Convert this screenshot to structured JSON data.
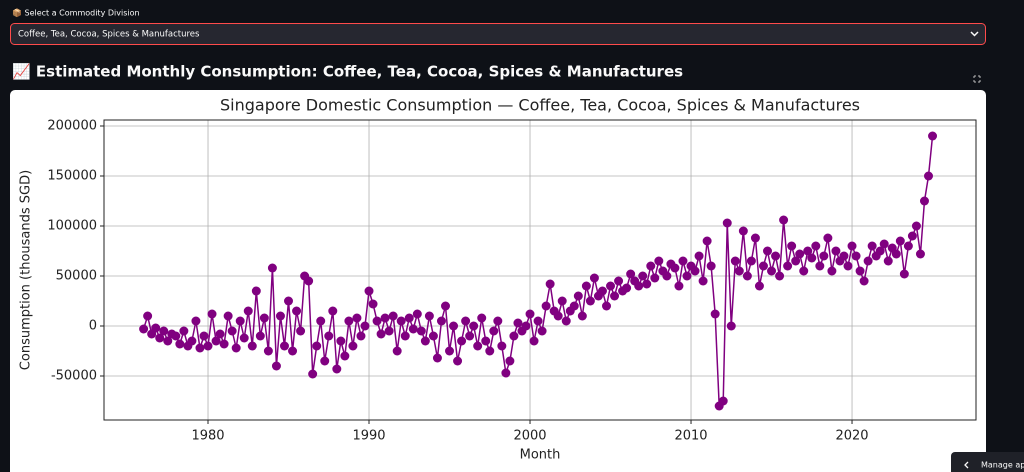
{
  "select": {
    "label": "📦 Select a Commodity Division",
    "value": "Coffee, Tea, Cocoa, Spices & Manufactures"
  },
  "header": "📈 Estimated Monthly Consumption: Coffee, Tea, Cocoa, Spices & Manufactures",
  "manage_app": "Manage app",
  "chart_data": {
    "type": "line",
    "title": "Singapore Domestic Consumption — Coffee, Tea, Cocoa, Spices & Manufactures",
    "x_label": "Month",
    "y_label": "Consumption (thousands SGD)",
    "color": "#800080",
    "grid": true,
    "xlim": [
      1973.54,
      2027.7
    ],
    "ylim": [
      -94000,
      206000
    ],
    "xticks": [
      1980,
      1990,
      2000,
      2010,
      2020
    ],
    "yticks": [
      -50000,
      0,
      50000,
      100000,
      150000,
      200000
    ],
    "x": [
      1976,
      1976.25,
      1976.5,
      1976.75,
      1977,
      1977.25,
      1977.5,
      1977.75,
      1978,
      1978.25,
      1978.5,
      1978.75,
      1979,
      1979.25,
      1979.5,
      1979.75,
      1980,
      1980.25,
      1980.5,
      1980.75,
      1981,
      1981.25,
      1981.5,
      1981.75,
      1982,
      1982.25,
      1982.5,
      1982.75,
      1983,
      1983.25,
      1983.5,
      1983.75,
      1984,
      1984.25,
      1984.5,
      1984.75,
      1985,
      1985.25,
      1985.5,
      1985.75,
      1986,
      1986.25,
      1986.5,
      1986.75,
      1987,
      1987.25,
      1987.5,
      1987.75,
      1988,
      1988.25,
      1988.5,
      1988.75,
      1989,
      1989.25,
      1989.5,
      1989.75,
      1990,
      1990.25,
      1990.5,
      1990.75,
      1991,
      1991.25,
      1991.5,
      1991.75,
      1992,
      1992.25,
      1992.5,
      1992.75,
      1993,
      1993.25,
      1993.5,
      1993.75,
      1994,
      1994.25,
      1994.5,
      1994.75,
      1995,
      1995.25,
      1995.5,
      1995.75,
      1996,
      1996.25,
      1996.5,
      1996.75,
      1997,
      1997.25,
      1997.5,
      1997.75,
      1998,
      1998.25,
      1998.5,
      1998.75,
      1999,
      1999.25,
      1999.5,
      1999.75,
      2000,
      2000.25,
      2000.5,
      2000.75,
      2001,
      2001.25,
      2001.5,
      2001.75,
      2002,
      2002.25,
      2002.5,
      2002.75,
      2003,
      2003.25,
      2003.5,
      2003.75,
      2004,
      2004.25,
      2004.5,
      2004.75,
      2005,
      2005.25,
      2005.5,
      2005.75,
      2006,
      2006.25,
      2006.5,
      2006.75,
      2007,
      2007.25,
      2007.5,
      2007.75,
      2008,
      2008.25,
      2008.5,
      2008.75,
      2009,
      2009.25,
      2009.5,
      2009.75,
      2010,
      2010.25,
      2010.5,
      2010.75,
      2011,
      2011.25,
      2011.5,
      2011.75,
      2012,
      2012.25,
      2012.5,
      2012.75,
      2013,
      2013.25,
      2013.5,
      2013.75,
      2014,
      2014.25,
      2014.5,
      2014.75,
      2015,
      2015.25,
      2015.5,
      2015.75,
      2016,
      2016.25,
      2016.5,
      2016.75,
      2017,
      2017.25,
      2017.5,
      2017.75,
      2018,
      2018.25,
      2018.5,
      2018.75,
      2019,
      2019.25,
      2019.5,
      2019.75,
      2020,
      2020.25,
      2020.5,
      2020.75,
      2021,
      2021.25,
      2021.5,
      2021.75,
      2022,
      2022.25,
      2022.5,
      2022.75,
      2023,
      2023.25,
      2023.5,
      2023.75,
      2024,
      2024.25,
      2024.5,
      2024.75,
      2025
    ],
    "values": [
      -3000,
      10000,
      -8000,
      -2000,
      -12000,
      -5000,
      -15000,
      -8000,
      -10000,
      -18000,
      -5000,
      -20000,
      -15000,
      5000,
      -22000,
      -10000,
      -20000,
      12000,
      -15000,
      -8000,
      -18000,
      10000,
      -5000,
      -22000,
      5000,
      -12000,
      15000,
      -20000,
      35000,
      -10000,
      8000,
      -25000,
      58000,
      -40000,
      10000,
      -20000,
      25000,
      -25000,
      15000,
      -5000,
      50000,
      45000,
      -48000,
      -20000,
      5000,
      -35000,
      -10000,
      15000,
      -43000,
      -15000,
      -30000,
      5000,
      -20000,
      8000,
      -10000,
      0,
      35000,
      22000,
      5000,
      -8000,
      8000,
      -5000,
      10000,
      -25000,
      5000,
      -10000,
      8000,
      -3000,
      12000,
      -5000,
      -15000,
      10000,
      -10000,
      -32000,
      5000,
      20000,
      -25000,
      0,
      -35000,
      -15000,
      5000,
      -10000,
      0,
      -20000,
      8000,
      -15000,
      -25000,
      -5000,
      5000,
      -20000,
      -47000,
      -35000,
      -10000,
      3000,
      -5000,
      0,
      12000,
      -15000,
      5000,
      -5000,
      20000,
      42000,
      15000,
      10000,
      25000,
      5000,
      15000,
      20000,
      30000,
      10000,
      40000,
      25000,
      48000,
      30000,
      35000,
      20000,
      40000,
      30000,
      45000,
      35000,
      38000,
      52000,
      45000,
      40000,
      50000,
      42000,
      60000,
      48000,
      65000,
      55000,
      50000,
      62000,
      58000,
      40000,
      65000,
      50000,
      60000,
      55000,
      70000,
      45000,
      85000,
      60000,
      12000,
      -80000,
      -75000,
      103000,
      0,
      65000,
      55000,
      95000,
      50000,
      65000,
      88000,
      40000,
      60000,
      75000,
      55000,
      70000,
      50000,
      106000,
      60000,
      80000,
      65000,
      72000,
      55000,
      75000,
      68000,
      80000,
      60000,
      70000,
      88000,
      55000,
      75000,
      65000,
      70000,
      60000,
      80000,
      70000,
      55000,
      45000,
      65000,
      80000,
      70000,
      75000,
      82000,
      65000,
      78000,
      72000,
      85000,
      52000,
      80000,
      90000,
      100000,
      72000,
      125000,
      150000,
      190000
    ]
  }
}
